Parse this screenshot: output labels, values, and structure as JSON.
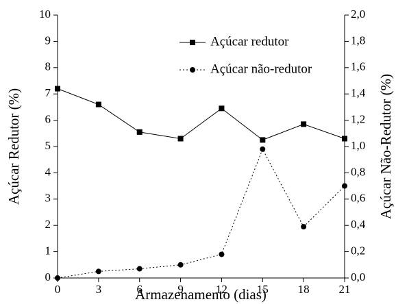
{
  "chart_data": {
    "type": "line",
    "xlabel": "Armazenamento (dias)",
    "ylabel": "Açúcar Redutor (%)",
    "y2label": "Açúcar Não-Redutor (%)",
    "x": [
      0,
      3,
      6,
      9,
      12,
      15,
      18,
      21
    ],
    "xlim": [
      0,
      21
    ],
    "xticks": [
      0,
      3,
      6,
      9,
      12,
      15,
      18,
      21
    ],
    "ylim": [
      0,
      10
    ],
    "yticks": [
      0,
      1,
      2,
      3,
      4,
      5,
      6,
      7,
      8,
      9,
      10
    ],
    "y2lim": [
      0,
      2
    ],
    "y2ticks": [
      {
        "value": 0,
        "label": "0,0"
      },
      {
        "value": 0.2,
        "label": "0,2"
      },
      {
        "value": 0.4,
        "label": "0,4"
      },
      {
        "value": 0.6,
        "label": "0,6"
      },
      {
        "value": 0.8,
        "label": "0,8"
      },
      {
        "value": 1.0,
        "label": "1,0"
      },
      {
        "value": 1.2,
        "label": "1,2"
      },
      {
        "value": 1.4,
        "label": "1,4"
      },
      {
        "value": 1.6,
        "label": "1,6"
      },
      {
        "value": 1.8,
        "label": "1,8"
      },
      {
        "value": 2.0,
        "label": "2,0"
      }
    ],
    "legend": "upper right",
    "series": [
      {
        "name": "Açúcar redutor",
        "color": "#000000",
        "marker": "square",
        "linestyle": "solid",
        "values": [
          7.2,
          6.6,
          5.55,
          5.3,
          6.45,
          5.25,
          5.85,
          5.3
        ]
      },
      {
        "name": "Açúcar não-redutor",
        "color": "#000000",
        "marker": "circle",
        "linestyle": "dotted",
        "axis": "y2",
        "values": [
          0.0,
          0.05,
          0.07,
          0.1,
          0.18,
          0.98,
          0.39,
          0.7
        ]
      }
    ]
  }
}
